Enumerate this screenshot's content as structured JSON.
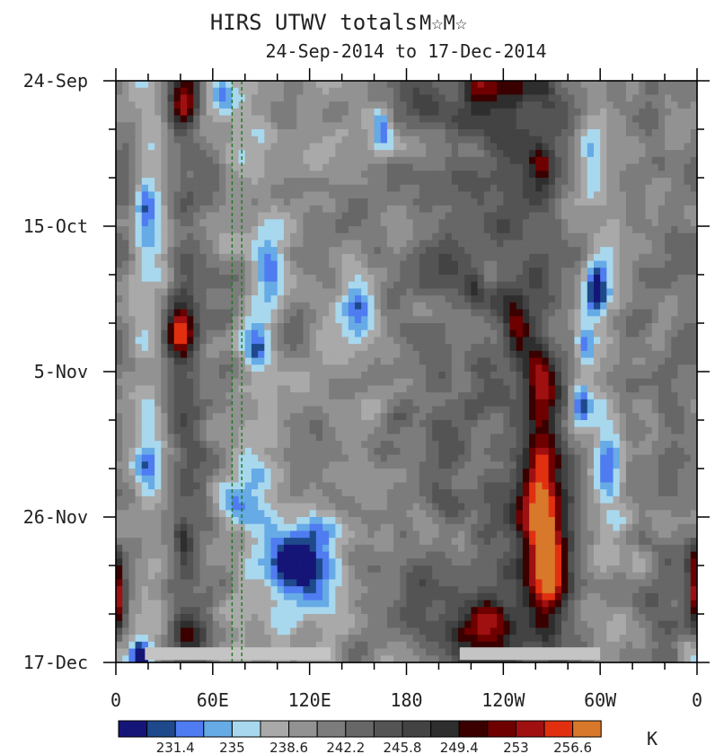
{
  "chart_data": {
    "type": "heatmap",
    "title": "HIRS UTWV totals",
    "title_marks": "M☆M☆",
    "subtitle": "24-Sep-2014 to 17-Dec-2014",
    "x_ticks": [
      "0",
      "60E",
      "120E",
      "180",
      "120W",
      "60W",
      "0"
    ],
    "x_tick_values": [
      0,
      60,
      120,
      180,
      240,
      300,
      360
    ],
    "xlim": [
      0,
      360
    ],
    "y_ticks": [
      "24-Sep",
      "15-Oct",
      "5-Nov",
      "26-Nov",
      "17-Dec"
    ],
    "y_tick_days": [
      0,
      21,
      42,
      63,
      84
    ],
    "ylim_days": [
      0,
      84
    ],
    "unit": "K",
    "colorbar": {
      "colors": [
        "#151578",
        "#1e4a8c",
        "#4f7cf0",
        "#66aae6",
        "#a8d8ee",
        "#a9a9a9",
        "#929292",
        "#7c7c7c",
        "#676767",
        "#545454",
        "#434343",
        "#2e2e2e",
        "#3a0000",
        "#6e0000",
        "#a01010",
        "#e03010",
        "#d8782a"
      ],
      "labels": [
        "231.4",
        "235",
        "238.6",
        "242.2",
        "245.8",
        "249.4",
        "253",
        "256.6"
      ],
      "label_after_box": [
        1,
        3,
        5,
        7,
        9,
        11,
        13,
        15
      ]
    },
    "reference_lines_lon": [
      72,
      78
    ],
    "missing_data_segments": [
      {
        "lon_start": 18,
        "lon_end": 133,
        "day_start": 82.6,
        "day_end": 84
      },
      {
        "lon_start": 213,
        "lon_end": 300,
        "day_start": 82.6,
        "day_end": 84
      }
    ],
    "warm_features": [
      {
        "lon": 42,
        "day": 3,
        "slon": 6,
        "sday": 2.5,
        "amp": 1.1
      },
      {
        "lon": 40,
        "day": 36,
        "slon": 6,
        "sday": 3,
        "amp": 1.3
      },
      {
        "lon": 236,
        "day": 1,
        "slon": 16,
        "sday": 3,
        "amp": 1.0
      },
      {
        "lon": 264,
        "day": 12,
        "slon": 5,
        "sday": 2,
        "amp": 0.9
      },
      {
        "lon": 222,
        "day": 30,
        "slon": 5,
        "sday": 2,
        "amp": 0.8
      },
      {
        "lon": 248,
        "day": 36,
        "slon": 5,
        "sday": 3,
        "amp": 0.9
      },
      {
        "lon": 263,
        "day": 48,
        "slon": 7,
        "sday": 9,
        "amp": 1.1
      },
      {
        "lon": 257,
        "day": 61,
        "slon": 13,
        "sday": 3,
        "amp": 1.1
      },
      {
        "lon": 267,
        "day": 69,
        "slon": 9,
        "sday": 6,
        "amp": 1.9
      },
      {
        "lon": 224,
        "day": 79,
        "slon": 15,
        "sday": 3,
        "amp": 1.0
      },
      {
        "lon": 44,
        "day": 80,
        "slon": 8,
        "sday": 2,
        "amp": 0.9
      },
      {
        "lon": 2,
        "day": 75,
        "slon": 3,
        "sday": 4,
        "amp": 1.0
      },
      {
        "lon": 358,
        "day": 72,
        "slon": 3,
        "sday": 4,
        "amp": 1.0
      },
      {
        "lon": 42,
        "day": 66,
        "slon": 4,
        "sday": 2,
        "amp": 0.8
      }
    ],
    "moist_features": [
      {
        "lon": 70,
        "day": 2,
        "slon": 8,
        "sday": 2,
        "amp": 1.0
      },
      {
        "lon": 165,
        "day": 7,
        "slon": 4,
        "sday": 2,
        "amp": 1.0
      },
      {
        "lon": 95,
        "day": 27,
        "slon": 7,
        "sday": 3,
        "amp": 1.1
      },
      {
        "lon": 150,
        "day": 33,
        "slon": 7,
        "sday": 3,
        "amp": 0.9
      },
      {
        "lon": 88,
        "day": 39,
        "slon": 5,
        "sday": 2,
        "amp": 1.0
      },
      {
        "lon": 298,
        "day": 30,
        "slon": 5,
        "sday": 3,
        "amp": 1.4
      },
      {
        "lon": 290,
        "day": 38,
        "slon": 4,
        "sday": 2,
        "amp": 1.2
      },
      {
        "lon": 288,
        "day": 47,
        "slon": 4,
        "sday": 2,
        "amp": 1.3
      },
      {
        "lon": 295,
        "day": 11,
        "slon": 6,
        "sday": 3,
        "amp": 0.9
      },
      {
        "lon": 20,
        "day": 56,
        "slon": 5,
        "sday": 2,
        "amp": 1.0
      },
      {
        "lon": 73,
        "day": 60,
        "slon": 8,
        "sday": 2,
        "amp": 1.0
      },
      {
        "lon": 115,
        "day": 70,
        "slon": 14,
        "sday": 5,
        "amp": 1.7
      },
      {
        "lon": 305,
        "day": 57,
        "slon": 6,
        "sday": 3,
        "amp": 0.9
      },
      {
        "lon": 15,
        "day": 83,
        "slon": 4,
        "sday": 1.5,
        "amp": 1.8
      },
      {
        "lon": 18,
        "day": 18,
        "slon": 5,
        "sday": 3,
        "amp": 0.9
      }
    ]
  }
}
